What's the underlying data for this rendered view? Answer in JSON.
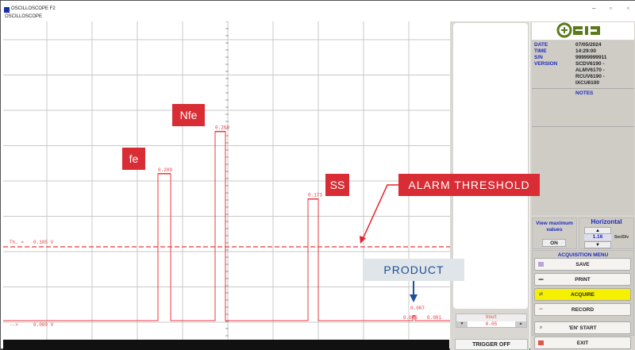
{
  "window": {
    "title": "OSCILLOSCOPE F2",
    "subtitle": "OSCILLOSCOPE",
    "minimize": "–",
    "maximize": "▫",
    "close": "×"
  },
  "colors": {
    "trace": "#e8393f",
    "grid": "#c8c8c8",
    "accent_blue": "#1d2bbd",
    "callout_red": "#d92d35",
    "acquire_yellow": "#f5f000"
  },
  "chart_data": {
    "type": "line",
    "unit": "V",
    "ylim": [
      0,
      0.45
    ],
    "threshold": {
      "label": "Th. =",
      "value": 0.105,
      "text": "0.105 V"
    },
    "baseline": {
      "label": "-->",
      "value": 0,
      "text": "0.000 V"
    },
    "peaks": [
      {
        "name": "fe",
        "value": 0.209,
        "label": "0.209"
      },
      {
        "name": "Nfe",
        "value": 0.269,
        "label": "0.269"
      },
      {
        "name": "SS",
        "value": 0.173,
        "label": "0.173"
      },
      {
        "name": "PRODUCT",
        "value": 0.007,
        "label": "0.007"
      }
    ],
    "extra_labels": [
      "0.001",
      "0.001"
    ]
  },
  "annotations": {
    "fe": "fe",
    "nfe": "Nfe",
    "ss": "SS",
    "alarm": "ALARM THRESHOLD",
    "product": "PRODUCT"
  },
  "vout": {
    "label": "Vout",
    "value": "0.05"
  },
  "trigger_button": "TRIGGER OFF",
  "info": {
    "date_k": "DATE",
    "date_v": "07/05/2024",
    "time_k": "TIME",
    "time_v": "14:29:00",
    "sn_k": "S/N",
    "sn_v": "99999999911",
    "version_k": "VERSION",
    "version_v1": "SCDV6190 -",
    "version_v2": "ALMV6170 -",
    "version_v3": "RCUV6190 -",
    "version_v4": "IXCU6100",
    "notes": "NOTES"
  },
  "view_max": {
    "label": "View maximum values",
    "button": "ON"
  },
  "horizontal": {
    "title": "Horizontal",
    "value": "1.16",
    "unit": "Sec/Div"
  },
  "acquisition": {
    "title": "ACQUISITION MENU",
    "save": "SAVE",
    "print": "PRINT",
    "acquire": "ACQUIRE",
    "record": "RECORD",
    "start": "'EN' START",
    "exit": "EXIT"
  },
  "logo": "ceia"
}
